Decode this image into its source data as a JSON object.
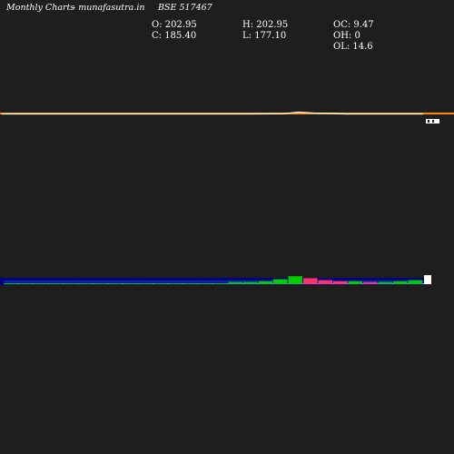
{
  "header": {
    "brand": "Monthly Charts",
    "site": "-  munafasutra.in",
    "symbol": "BSE 517467"
  },
  "stats": {
    "open": "O: 202.95",
    "high": "H: 202.95",
    "change_oc": "OC: 9.47",
    "close": "C: 185.40",
    "low": "L: 177.10",
    "change_oh": "OH: 0",
    "change_ol": "OL: 14.6"
  },
  "chart_data": [
    {
      "type": "line",
      "series": [
        {
          "values": [
            80,
            80,
            80,
            80,
            80,
            80,
            80,
            80,
            80,
            80,
            80,
            80,
            80,
            80,
            80,
            80,
            80,
            82,
            84,
            120,
            100,
            95,
            80,
            80,
            80,
            80,
            80,
            80
          ]
        }
      ],
      "colors": {
        "price_line": "#ffffff",
        "ma_line": "#ff8c00"
      }
    },
    {
      "type": "bar",
      "series": [
        {
          "values": [
            1,
            1,
            1,
            1,
            1,
            1,
            1,
            1,
            1,
            1,
            1,
            1,
            1,
            1,
            1,
            2,
            2,
            3,
            5,
            8,
            6,
            4,
            3,
            3,
            2,
            2,
            3,
            4
          ]
        }
      ],
      "colors": {
        "background": "#000080",
        "up": "#00cc00",
        "down": "#ff3366",
        "signal": "#00bfff"
      }
    }
  ]
}
